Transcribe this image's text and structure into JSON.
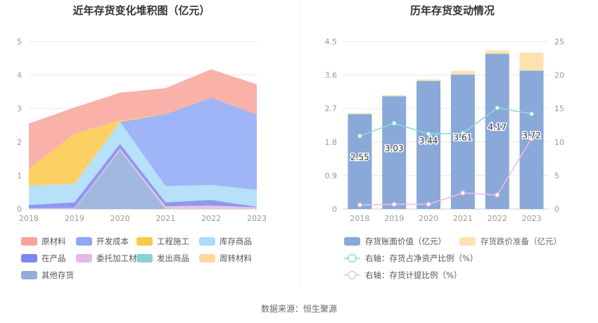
{
  "left_chart": {
    "title": "近年存货变化堆积图（亿元）",
    "legend": [
      {
        "label": "原材料",
        "color": "#f8a39a"
      },
      {
        "label": "开发成本",
        "color": "#8fa7f7"
      },
      {
        "label": "工程施工",
        "color": "#fcc84a"
      },
      {
        "label": "库存商品",
        "color": "#a9dcf7"
      },
      {
        "label": "在产品",
        "color": "#7b86ef"
      },
      {
        "label": "委托加工材料",
        "color": "#e5b8e2"
      },
      {
        "label": "发出商品",
        "color": "#86d3d3"
      },
      {
        "label": "周转材料",
        "color": "#fdd79a"
      },
      {
        "label": "其他存货",
        "color": "#93acd9"
      }
    ]
  },
  "right_chart": {
    "title": "历年存货变动情况",
    "legend": [
      {
        "label": "存货账面价值（亿元）",
        "color": "#8aa8d8"
      },
      {
        "label": "存货跌价准备（亿元）",
        "color": "#fde2b0"
      },
      {
        "label": "右轴：存货占净资产比例（%）",
        "color": "#8fdad8"
      },
      {
        "label": "右轴：存货计提比例（%）",
        "color": "#ecc0e0"
      }
    ]
  },
  "source": "数据来源：恒生聚源",
  "chart_data": [
    {
      "type": "area",
      "title": "近年存货变化堆积图（亿元）",
      "x": [
        "2018",
        "2019",
        "2020",
        "2021",
        "2022",
        "2023"
      ],
      "ylim": [
        0,
        5
      ],
      "yticks": [
        "0",
        "1",
        "2",
        "3",
        "4",
        "5"
      ],
      "stacked": true,
      "grid": true,
      "legend_position": "bottom",
      "series": [
        {
          "name": "其他存货",
          "color": "#93acd9",
          "values": [
            0.0,
            0.0,
            1.75,
            0.0,
            0.0,
            0.0
          ]
        },
        {
          "name": "委托加工材料",
          "color": "#e5b8e2",
          "values": [
            0.02,
            0.03,
            0.05,
            0.08,
            0.1,
            0.05
          ]
        },
        {
          "name": "发出商品",
          "color": "#86d3d3",
          "values": [
            0.0,
            0.0,
            0.0,
            0.0,
            0.0,
            0.0
          ]
        },
        {
          "name": "在产品",
          "color": "#7b86ef",
          "values": [
            0.1,
            0.17,
            0.15,
            0.12,
            0.17,
            0.02
          ]
        },
        {
          "name": "周转材料",
          "color": "#fdd79a",
          "values": [
            0.0,
            0.0,
            0.0,
            0.0,
            0.0,
            0.0
          ]
        },
        {
          "name": "库存商品",
          "color": "#a9dcf7",
          "values": [
            0.58,
            0.55,
            0.65,
            0.48,
            0.45,
            0.5
          ]
        },
        {
          "name": "开发成本",
          "color": "#8fa7f7",
          "values": [
            0.0,
            0.0,
            0.0,
            2.15,
            2.6,
            2.25
          ]
        },
        {
          "name": "工程施工",
          "color": "#fcc84a",
          "values": [
            0.5,
            1.5,
            0.05,
            0.0,
            0.0,
            0.0
          ]
        },
        {
          "name": "原材料",
          "color": "#f8a39a",
          "values": [
            1.35,
            0.78,
            0.82,
            0.78,
            0.85,
            0.9
          ]
        }
      ]
    },
    {
      "type": "bar",
      "title": "历年存货变动情况",
      "categories": [
        "2018",
        "2019",
        "2020",
        "2021",
        "2022",
        "2023"
      ],
      "stacked": true,
      "ylim": [
        0,
        4.5
      ],
      "yticks": [
        "0",
        "0.9",
        "1.8",
        "2.7",
        "3.6",
        "4.5"
      ],
      "y2lim": [
        0,
        25
      ],
      "y2ticks": [
        "0",
        "5",
        "10",
        "15",
        "20",
        "25"
      ],
      "grid": true,
      "legend_position": "bottom",
      "series": [
        {
          "name": "存货账面价值（亿元）",
          "color": "#8aa8d8",
          "axis": "left",
          "values": [
            2.55,
            3.03,
            3.44,
            3.61,
            4.17,
            3.72
          ],
          "labels": [
            "2.55",
            "3.03",
            "3.44",
            "3.61",
            "4.17",
            "3.72"
          ]
        },
        {
          "name": "存货跌价准备（亿元）",
          "color": "#fde2b0",
          "axis": "left",
          "values": [
            0.02,
            0.03,
            0.04,
            0.1,
            0.09,
            0.48
          ]
        },
        {
          "name": "右轴：存货占净资产比例（%）",
          "color": "#8fdad8",
          "axis": "right",
          "type": "line",
          "values": [
            10.9,
            12.8,
            11.2,
            11.3,
            15.1,
            14.2
          ]
        },
        {
          "name": "右轴：存货计提比例（%）",
          "color": "#ecc0e0",
          "axis": "right",
          "type": "line",
          "values": [
            0.6,
            0.7,
            0.7,
            2.4,
            2.1,
            10.5
          ]
        }
      ]
    }
  ]
}
